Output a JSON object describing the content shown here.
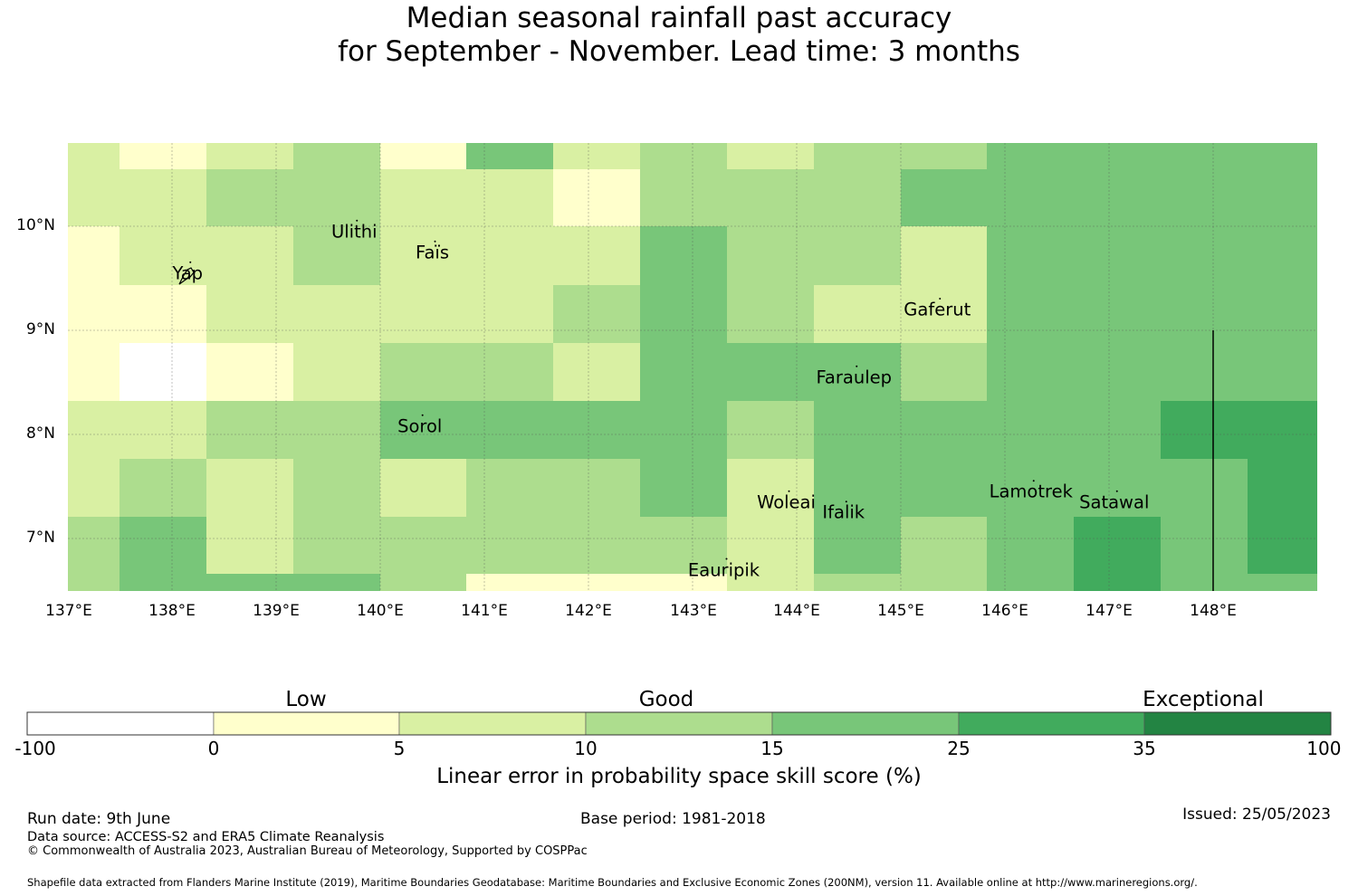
{
  "title": {
    "line1": "Median seasonal rainfall past accuracy",
    "line2": "for September - November. Lead time: 3 months"
  },
  "map": {
    "lon_range": [
      137.0,
      149.0
    ],
    "lat_range": [
      6.5,
      10.8
    ],
    "lon_ticks": [
      "137°E",
      "138°E",
      "139°E",
      "140°E",
      "141°E",
      "142°E",
      "143°E",
      "144°E",
      "145°E",
      "146°E",
      "147°E",
      "148°E"
    ],
    "lat_ticks": [
      "10°N",
      "9°N",
      "8°N",
      "7°N"
    ],
    "places": [
      {
        "name": "Ulithi",
        "lon": 139.75,
        "lat": 9.95
      },
      {
        "name": "Faïs",
        "lon": 140.5,
        "lat": 9.75
      },
      {
        "name": "Yap",
        "lon": 138.15,
        "lat": 9.55
      },
      {
        "name": "Gaferut",
        "lon": 145.35,
        "lat": 9.2
      },
      {
        "name": "Faraulep",
        "lon": 144.55,
        "lat": 8.55
      },
      {
        "name": "Sorol",
        "lon": 140.38,
        "lat": 8.08
      },
      {
        "name": "Woleai",
        "lon": 143.9,
        "lat": 7.35
      },
      {
        "name": "Ifalik",
        "lon": 144.45,
        "lat": 7.25
      },
      {
        "name": "Lamotrek",
        "lon": 146.25,
        "lat": 7.45
      },
      {
        "name": "Satawal",
        "lon": 147.05,
        "lat": 7.35
      },
      {
        "name": "Eauripik",
        "lon": 143.3,
        "lat": 6.7
      }
    ],
    "eez_boundary": {
      "lon": 148.0,
      "lat_from": 9.0,
      "lat_to": 6.5
    }
  },
  "colorbar": {
    "categories": [
      "Low",
      "Good",
      "Exceptional"
    ],
    "ticks": [
      "-100",
      "0",
      "5",
      "10",
      "15",
      "25",
      "35",
      "100"
    ],
    "colors": [
      "#ffffff",
      "#ffffcc",
      "#d9f0a3",
      "#addd8e",
      "#78c679",
      "#41ab5d",
      "#238443"
    ],
    "label": "Linear error in probability space skill score (%)"
  },
  "footer": {
    "run_date": "Run date: 9th June",
    "base_period": "Base period: 1981-2018",
    "issued": "Issued: 25/05/2023",
    "data_source": "Data source: ACCESS-S2 and ERA5 Climate Reanalysis",
    "copyright": "© Commonwealth of Australia 2023, Australian Bureau of Meteorology, Supported by COSPPac",
    "shapefile": "Shapefile data extracted from Flanders Marine Institute (2019), Maritime Boundaries Geodatabase: Maritime Boundaries and Exclusive Economic Zones (200NM), version 11. Available online at http://www.marineregions.org/."
  }
}
